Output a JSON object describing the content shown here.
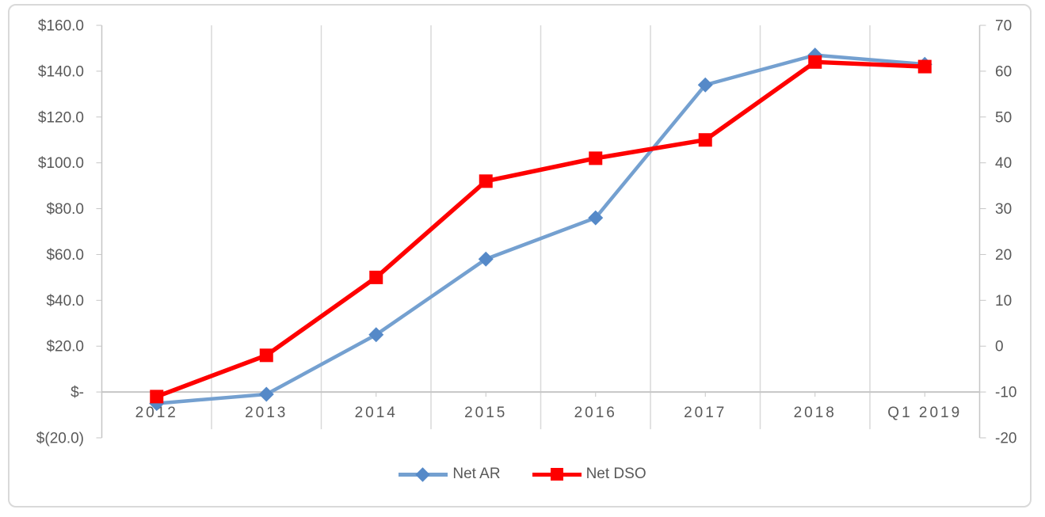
{
  "chart_data": {
    "type": "line",
    "title": "",
    "categories": [
      "2012",
      "2013",
      "2014",
      "2015",
      "2016",
      "2017",
      "2018",
      "Q1 2019"
    ],
    "series": [
      {
        "name": "Net AR",
        "axis": "left",
        "marker": "diamond",
        "color": "#74A0D0",
        "marker_color": "#5589C8",
        "values": [
          -5,
          -1,
          25,
          58,
          76,
          134,
          147,
          143
        ]
      },
      {
        "name": "Net DSO",
        "axis": "right",
        "marker": "square",
        "color": "#FE0000",
        "marker_color": "#FE0000",
        "values": [
          -11,
          -2,
          15,
          36,
          41,
          45,
          62,
          61
        ]
      }
    ],
    "left_axis": {
      "min": -20,
      "max": 160,
      "ticks": [
        {
          "label": "$160.0",
          "value": 160
        },
        {
          "label": "$140.0",
          "value": 140
        },
        {
          "label": "$120.0",
          "value": 120
        },
        {
          "label": "$100.0",
          "value": 100
        },
        {
          "label": "$80.0",
          "value": 80
        },
        {
          "label": "$60.0",
          "value": 60
        },
        {
          "label": "$40.0",
          "value": 40
        },
        {
          "label": "$20.0",
          "value": 20
        },
        {
          "label": "$-",
          "value": 0
        },
        {
          "label": "$(20.0)",
          "value": -20
        }
      ]
    },
    "right_axis": {
      "min": -20,
      "max": 70,
      "ticks": [
        {
          "label": "70",
          "value": 70
        },
        {
          "label": "60",
          "value": 60
        },
        {
          "label": "50",
          "value": 50
        },
        {
          "label": "40",
          "value": 40
        },
        {
          "label": "30",
          "value": 30
        },
        {
          "label": "20",
          "value": 20
        },
        {
          "label": "10",
          "value": 10
        },
        {
          "label": "0",
          "value": 0
        },
        {
          "label": "-10",
          "value": -10
        },
        {
          "label": "-20",
          "value": -20
        }
      ]
    },
    "category_axis_crosses_at_left_value": 0,
    "grid": "vertical-only",
    "legend_position": "bottom"
  },
  "legend": {
    "items": [
      {
        "label": "Net AR",
        "color": "#74A0D0",
        "marker_color": "#5589C8",
        "marker": "diamond"
      },
      {
        "label": "Net DSO",
        "color": "#FE0000",
        "marker_color": "#FE0000",
        "marker": "square"
      }
    ]
  },
  "colors": {
    "background": "#FFFFFF",
    "frame_border": "#D9D9D9",
    "gridline": "#D9D9D9",
    "axis_line": "#C6C6C6",
    "axis_text": "#595959",
    "net_ar": "#74A0D0",
    "net_dso": "#FE0000"
  }
}
